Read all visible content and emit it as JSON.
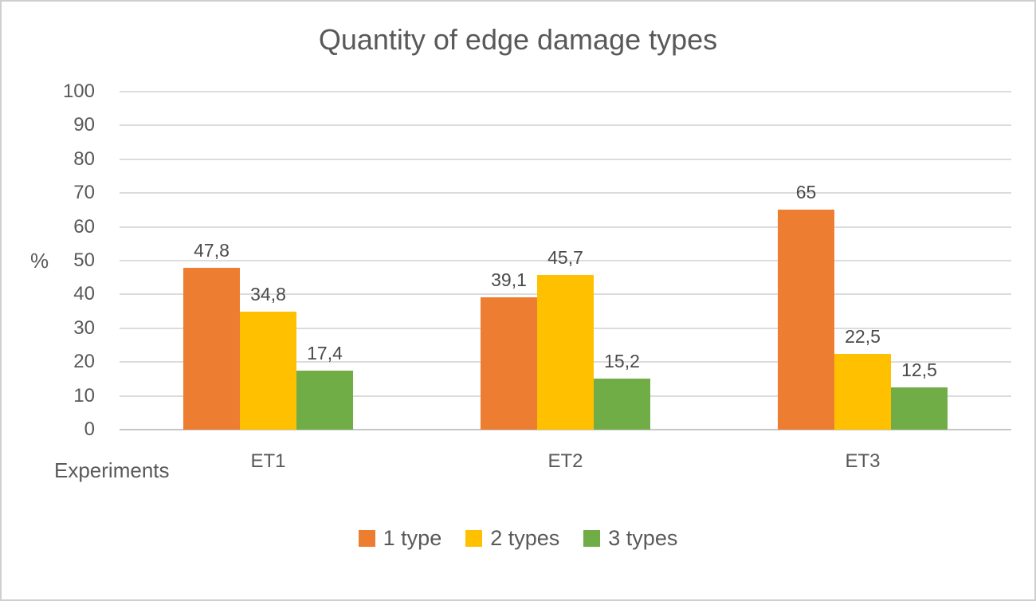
{
  "window": {
    "background": "#FFFFFF",
    "border_color": "#CFCFCF"
  },
  "chart_data": {
    "type": "bar",
    "title": "Quantity of edge damage types",
    "xlabel": "Experiments",
    "ylabel": "%",
    "categories": [
      "ET1",
      "ET2",
      "ET3"
    ],
    "series": [
      {
        "name": "1 type",
        "color": "#ED7D31",
        "values": [
          47.8,
          39.1,
          65
        ],
        "labels": [
          "47,8",
          "39,1",
          "65"
        ]
      },
      {
        "name": "2 types",
        "color": "#FFC000",
        "values": [
          34.8,
          45.7,
          22.5
        ],
        "labels": [
          "34,8",
          "45,7",
          "22,5"
        ]
      },
      {
        "name": "3 types",
        "color": "#70AD47",
        "values": [
          17.4,
          15.2,
          12.5
        ],
        "labels": [
          "17,4",
          "15,2",
          "12,5"
        ]
      }
    ],
    "ylim": [
      0,
      100
    ],
    "yticks": [
      0,
      10,
      20,
      30,
      40,
      50,
      60,
      70,
      80,
      90,
      100
    ],
    "grid": true,
    "gridline_color": "#DCDCDC",
    "axis_line_color": "#C6C6C6",
    "text_color": "#595959",
    "data_label_color": "#4A4A4A",
    "legend_position": "bottom",
    "legend_entries": [
      "1 type",
      "2 types",
      "3 types"
    ]
  }
}
